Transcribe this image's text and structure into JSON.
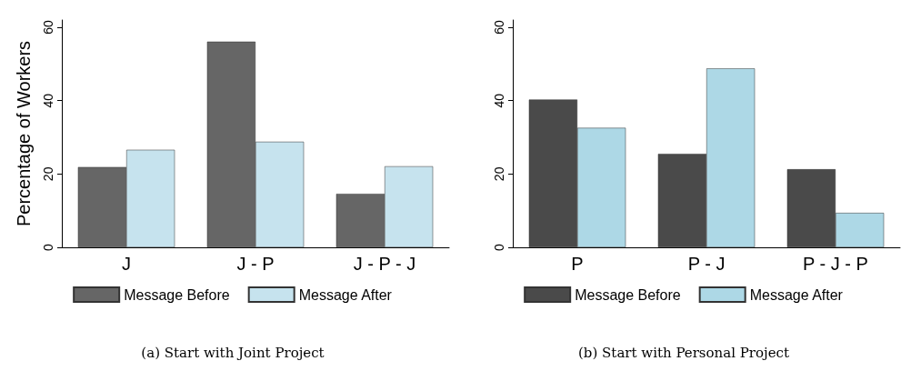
{
  "chart_data": [
    {
      "type": "bar",
      "title": "(a) Start with Joint Project",
      "ylabel": "Percentage of Workers",
      "categories": [
        "J",
        "J - P",
        "J - P - J"
      ],
      "series": [
        {
          "name": "Message Before",
          "color": "#666666",
          "values": [
            21.9,
            56.1,
            14.6
          ]
        },
        {
          "name": "Message After",
          "color": "#c6e3ee",
          "values": [
            26.6,
            28.8,
            22.1
          ]
        }
      ],
      "ylim": [
        0,
        62
      ],
      "yticks": [
        0,
        20,
        40,
        60
      ],
      "grid": false,
      "legend": "bottom"
    },
    {
      "type": "bar",
      "title": "(b) Start with Personal Project",
      "categories": [
        "P",
        "P - J",
        "P - J - P"
      ],
      "series": [
        {
          "name": "Message Before",
          "color": "#4a4a4a",
          "values": [
            40.3,
            25.5,
            21.3
          ]
        },
        {
          "name": "Message After",
          "color": "#add8e6",
          "values": [
            32.6,
            48.8,
            9.4
          ]
        }
      ],
      "ylim": [
        0,
        62
      ],
      "yticks": [
        0,
        20,
        40,
        60
      ],
      "grid": false,
      "legend": "bottom"
    }
  ]
}
